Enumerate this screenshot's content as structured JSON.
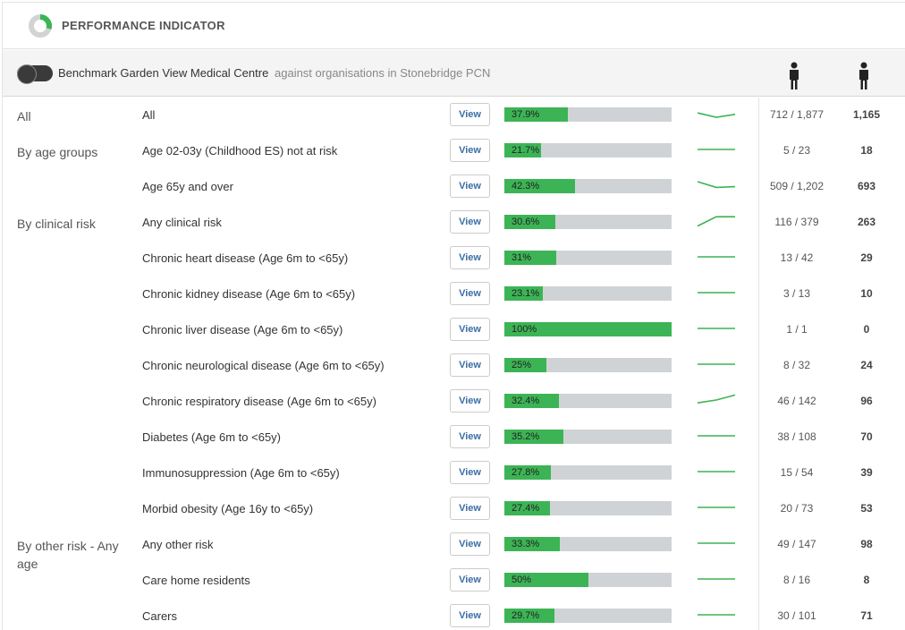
{
  "header": {
    "title": "PERFORMANCE INDICATOR",
    "icon": "donut-chart-icon",
    "colors": {
      "accent": "#3cb455",
      "track": "#d0d3d6"
    }
  },
  "benchmark": {
    "toggle_icon": "toggle-switch-icon",
    "label": "Benchmark Garden View Medical Centre",
    "against": "against organisations in Stonebridge PCN"
  },
  "columns": {
    "icon_1": "person-icon",
    "icon_2": "person-icon"
  },
  "view_label": "View",
  "rows": [
    {
      "group": "All",
      "label": "All",
      "percent_text": "37.9%",
      "value": 0.379,
      "trend": [
        0.55,
        0.25,
        0.45
      ],
      "ratio": "712 / 1,877",
      "count": "1,165"
    },
    {
      "group": "By age groups",
      "label": "Age 02-03y (Childhood ES) not at risk",
      "percent_text": "21.7%",
      "value": 0.217,
      "trend": [
        0.5,
        0.5,
        0.5
      ],
      "ratio": "5 / 23",
      "count": "18"
    },
    {
      "group": "",
      "label": "Age 65y and over",
      "percent_text": "42.3%",
      "value": 0.423,
      "trend": [
        0.75,
        0.35,
        0.4
      ],
      "ratio": "509 / 1,202",
      "count": "693"
    },
    {
      "group": "By clinical risk",
      "label": "Any clinical risk",
      "percent_text": "30.6%",
      "value": 0.306,
      "trend": [
        0.15,
        0.8,
        0.8
      ],
      "ratio": "116 / 379",
      "count": "263"
    },
    {
      "group": "",
      "label": "Chronic heart disease (Age 6m to <65y)",
      "percent_text": "31%",
      "value": 0.31,
      "trend": [
        0.5,
        0.5,
        0.5
      ],
      "ratio": "13 / 42",
      "count": "29"
    },
    {
      "group": "",
      "label": "Chronic kidney disease (Age 6m to <65y)",
      "percent_text": "23.1%",
      "value": 0.231,
      "trend": [
        0.5,
        0.5,
        0.5
      ],
      "ratio": "3 / 13",
      "count": "10"
    },
    {
      "group": "",
      "label": "Chronic liver disease (Age 6m to <65y)",
      "percent_text": "100%",
      "value": 1.0,
      "trend": [
        0.5,
        0.5,
        0.5
      ],
      "ratio": "1 / 1",
      "count": "0"
    },
    {
      "group": "",
      "label": "Chronic neurological disease (Age 6m to <65y)",
      "percent_text": "25%",
      "value": 0.25,
      "trend": [
        0.5,
        0.5,
        0.5
      ],
      "ratio": "8 / 32",
      "count": "24"
    },
    {
      "group": "",
      "label": "Chronic respiratory disease (Age 6m to <65y)",
      "percent_text": "32.4%",
      "value": 0.324,
      "trend": [
        0.3,
        0.5,
        0.85
      ],
      "ratio": "46 / 142",
      "count": "96"
    },
    {
      "group": "",
      "label": "Diabetes (Age 6m to <65y)",
      "percent_text": "35.2%",
      "value": 0.352,
      "trend": [
        0.5,
        0.5,
        0.5
      ],
      "ratio": "38 / 108",
      "count": "70"
    },
    {
      "group": "",
      "label": "Immunosuppression (Age 6m to <65y)",
      "percent_text": "27.8%",
      "value": 0.278,
      "trend": [
        0.5,
        0.5,
        0.5
      ],
      "ratio": "15 / 54",
      "count": "39"
    },
    {
      "group": "",
      "label": "Morbid obesity (Age 16y to <65y)",
      "percent_text": "27.4%",
      "value": 0.274,
      "trend": [
        0.5,
        0.5,
        0.5
      ],
      "ratio": "20 / 73",
      "count": "53"
    },
    {
      "group": "By other risk - Any age",
      "label": "Any other risk",
      "percent_text": "33.3%",
      "value": 0.333,
      "trend": [
        0.5,
        0.5,
        0.5
      ],
      "ratio": "49 / 147",
      "count": "98"
    },
    {
      "group": "",
      "label": "Care home residents",
      "percent_text": "50%",
      "value": 0.5,
      "trend": [
        0.5,
        0.5,
        0.5
      ],
      "ratio": "8 / 16",
      "count": "8"
    },
    {
      "group": "",
      "label": "Carers",
      "percent_text": "29.7%",
      "value": 0.297,
      "trend": [
        0.5,
        0.5,
        0.5
      ],
      "ratio": "30 / 101",
      "count": "71"
    }
  ]
}
